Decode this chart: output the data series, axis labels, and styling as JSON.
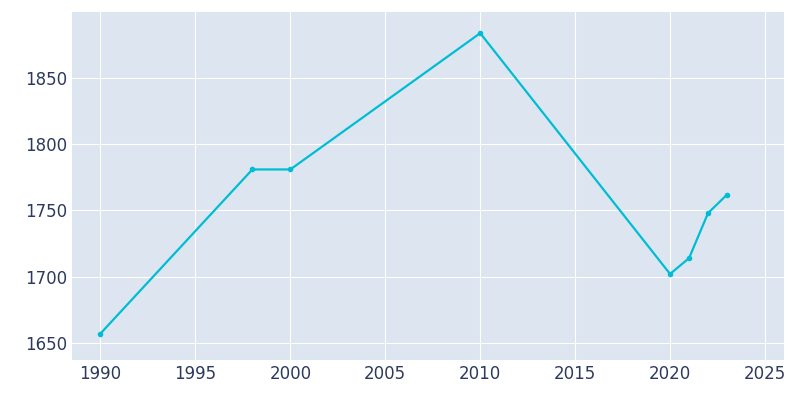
{
  "years": [
    1990,
    1998,
    2000,
    2010,
    2020,
    2021,
    2022,
    2023
  ],
  "population": [
    1657,
    1781,
    1781,
    1884,
    1702,
    1714,
    1748,
    1762
  ],
  "line_color": "#00BCD4",
  "marker": "o",
  "marker_size": 3,
  "line_width": 1.6,
  "fig_bg_color": "#FFFFFF",
  "plot_bg_color": "#DDE6F0",
  "grid_color": "#FFFFFF",
  "tick_color": "#2d3a5e",
  "xlim": [
    1988.5,
    2026
  ],
  "ylim": [
    1637,
    1900
  ],
  "xticks": [
    1990,
    1995,
    2000,
    2005,
    2010,
    2015,
    2020,
    2025
  ],
  "yticks": [
    1650,
    1700,
    1750,
    1800,
    1850
  ],
  "tick_fontsize": 12
}
